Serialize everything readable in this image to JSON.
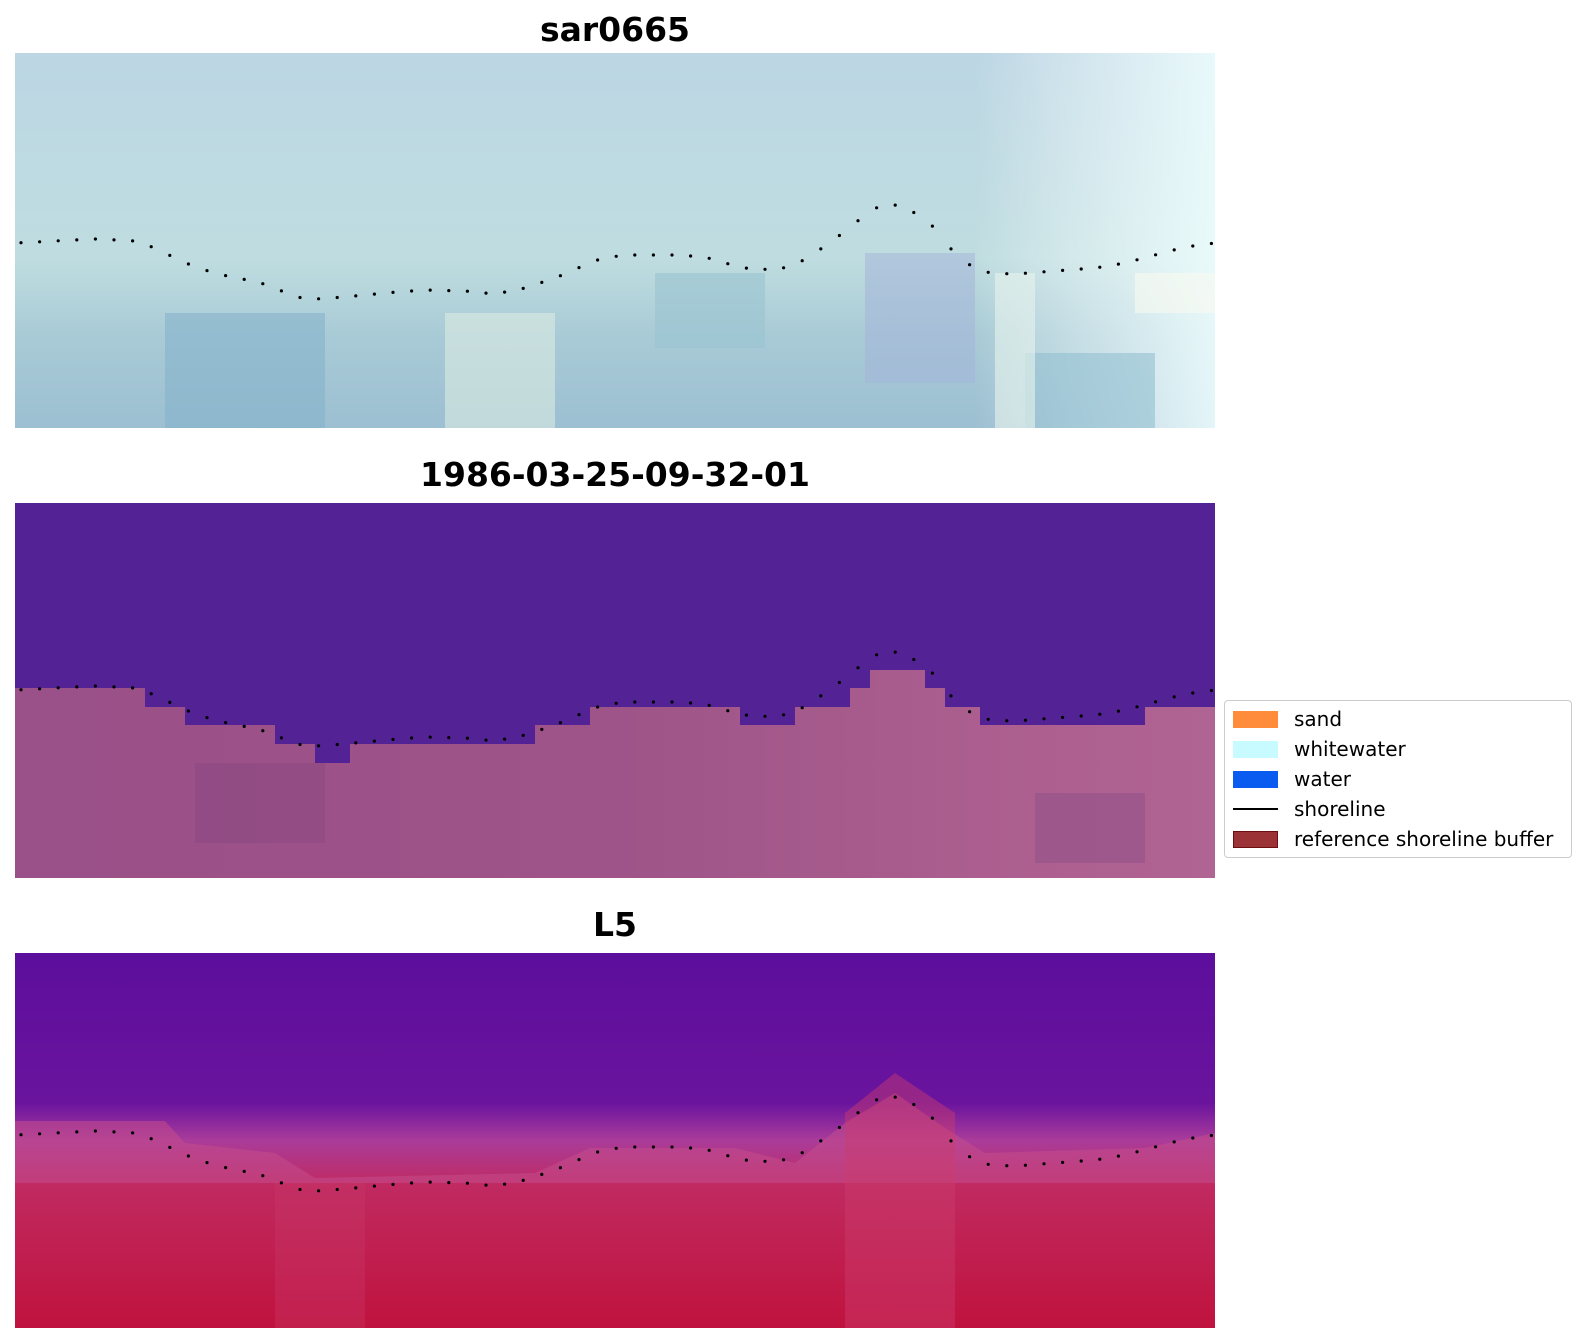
{
  "panels": [
    {
      "title": "sar0665"
    },
    {
      "title": "1986-03-25-09-32-01"
    },
    {
      "title": "L5"
    }
  ],
  "legend": {
    "items": [
      {
        "label": "sand",
        "color": "#ff8c3a",
        "kind": "patch"
      },
      {
        "label": "whitewater",
        "color": "#c8fbff",
        "kind": "patch"
      },
      {
        "label": "water",
        "color": "#0a5cf0",
        "kind": "patch"
      },
      {
        "label": "shoreline",
        "color": "#000000",
        "kind": "line"
      },
      {
        "label": "reference shoreline buffer",
        "color": "#9b3236",
        "kind": "patch",
        "edge": "#6b0f12"
      }
    ]
  },
  "colors": {
    "panel1_base": "#b8d8df",
    "panel2_upper": "#532396",
    "panel2_lower": "#a0588c",
    "panel3_upper": "#5a0f9a",
    "panel3_lower": "#c41a4a"
  }
}
